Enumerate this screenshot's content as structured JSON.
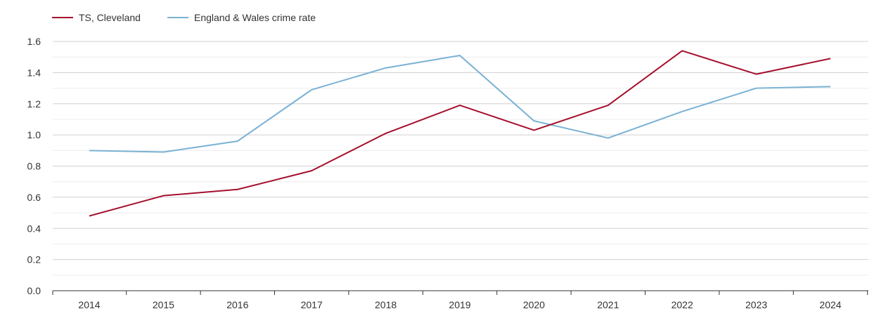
{
  "chart_data": {
    "type": "line",
    "title": "",
    "xlabel": "",
    "ylabel": "",
    "categories": [
      "2014",
      "2015",
      "2016",
      "2017",
      "2018",
      "2019",
      "2020",
      "2021",
      "2022",
      "2023",
      "2024"
    ],
    "series": [
      {
        "name": "TS, Cleveland",
        "color": "#a50f2d",
        "values": [
          0.48,
          0.61,
          0.65,
          0.77,
          1.01,
          1.19,
          1.03,
          1.19,
          1.54,
          1.39,
          1.49
        ]
      },
      {
        "name": "England & Wales crime rate",
        "color": "#79b1d4",
        "values": [
          0.9,
          0.89,
          0.96,
          1.29,
          1.43,
          1.51,
          1.09,
          0.98,
          1.15,
          1.3,
          1.31
        ]
      }
    ],
    "ylim": [
      0,
      1.6
    ],
    "yticks": [
      "0.0",
      "0.2",
      "0.4",
      "0.6",
      "0.8",
      "1.0",
      "1.2",
      "1.4",
      "1.6"
    ],
    "grid": true,
    "legend_position": "top-left"
  }
}
